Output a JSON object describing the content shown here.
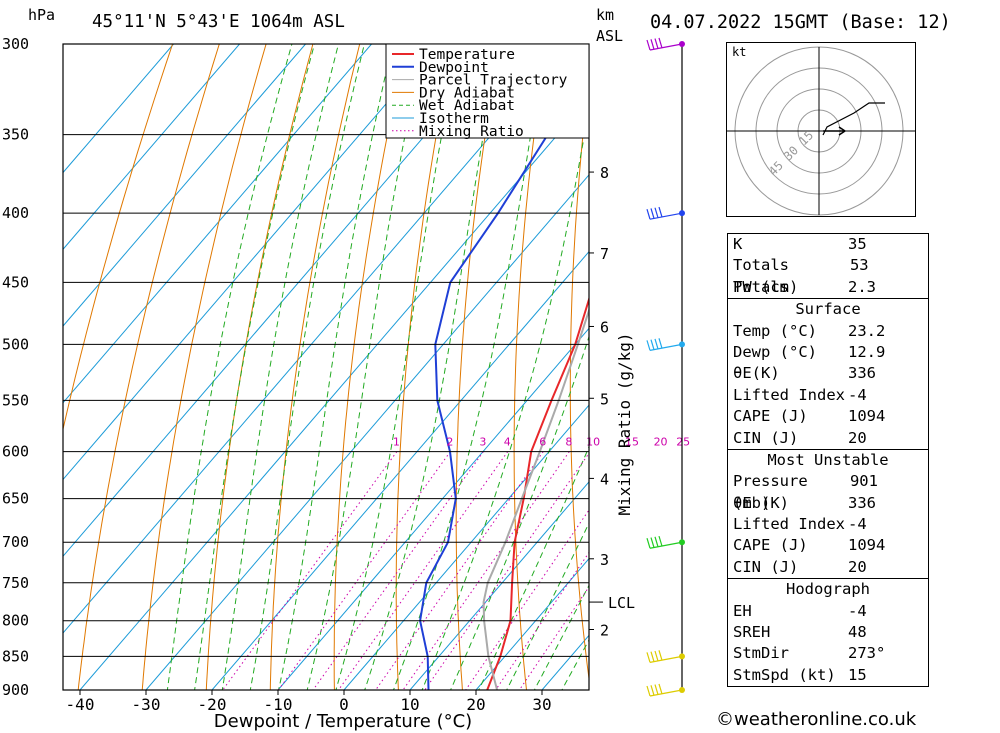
{
  "header": {
    "pressure_unit": "hPa",
    "location": "45°11'N  5°43'E  1064m  ASL",
    "height_unit_line1": "km",
    "height_unit_line2": "ASL",
    "datetime": "04.07.2022  15GMT  (Base: 12)"
  },
  "chart_data": {
    "type": "line",
    "title": "45°11'N  5°43'E  1064m  ASL",
    "xlabel": "Dewpoint / Temperature (°C)",
    "ylabel": "hPa",
    "y_scale": "log",
    "xlim": [
      -40,
      36
    ],
    "ylim": [
      900,
      300
    ],
    "pressure_levels": [
      300,
      350,
      400,
      450,
      500,
      550,
      600,
      650,
      700,
      750,
      800,
      850,
      900
    ],
    "temperature_ticks": [
      -40,
      -30,
      -20,
      -10,
      0,
      10,
      20,
      30
    ],
    "height_ticks_km": [
      {
        "label": "8",
        "p": 373
      },
      {
        "label": "7",
        "p": 428
      },
      {
        "label": "6",
        "p": 485
      },
      {
        "label": "5",
        "p": 548
      },
      {
        "label": "4",
        "p": 628
      },
      {
        "label": "3",
        "p": 720
      },
      {
        "label": "2",
        "p": 812
      }
    ],
    "lcl": {
      "label": "LCL",
      "p": 775
    },
    "mixing_ratio_label": "Mixing Ratio (g/kg)",
    "mixing_ratio_values": [
      "1",
      "2",
      "3",
      "4",
      "6",
      "8",
      "10",
      "15",
      "20",
      "25"
    ],
    "legend": {
      "position": "top-right",
      "entries": [
        {
          "name": "Temperature",
          "color": "#e8272a",
          "style": "solid"
        },
        {
          "name": "Dewpoint",
          "color": "#1f3fd6",
          "style": "solid"
        },
        {
          "name": "Parcel Trajectory",
          "color": "#aaaaaa",
          "style": "solid"
        },
        {
          "name": "Dry Adiabat",
          "color": "#e07800",
          "style": "solid"
        },
        {
          "name": "Wet Adiabat",
          "color": "#22aa22",
          "style": "dashed"
        },
        {
          "name": "Isotherm",
          "color": "#1c9bd8",
          "style": "solid"
        },
        {
          "name": "Mixing Ratio",
          "color": "#cc00aa",
          "style": "dotted"
        }
      ]
    },
    "series": [
      {
        "name": "Temperature",
        "color": "#e8272a",
        "points": [
          {
            "p": 900,
            "t": 21.7
          },
          {
            "p": 850,
            "t": 19.3
          },
          {
            "p": 800,
            "t": 16.2
          },
          {
            "p": 750,
            "t": 11.5
          },
          {
            "p": 700,
            "t": 6.6
          },
          {
            "p": 650,
            "t": 2.3
          },
          {
            "p": 600,
            "t": -2.7
          },
          {
            "p": 550,
            "t": -6.3
          },
          {
            "p": 500,
            "t": -10.0
          },
          {
            "p": 450,
            "t": -15.2
          },
          {
            "p": 400,
            "t": -21.5
          },
          {
            "p": 350,
            "t": -29.8
          },
          {
            "p": 300,
            "t": -40.2
          }
        ]
      },
      {
        "name": "Dewpoint",
        "color": "#1f3fd6",
        "points": [
          {
            "p": 900,
            "t": 12.8
          },
          {
            "p": 850,
            "t": 8.3
          },
          {
            "p": 800,
            "t": 2.5
          },
          {
            "p": 750,
            "t": -1.5
          },
          {
            "p": 700,
            "t": -3.5
          },
          {
            "p": 650,
            "t": -8.0
          },
          {
            "p": 600,
            "t": -15.0
          },
          {
            "p": 550,
            "t": -23.6
          },
          {
            "p": 500,
            "t": -31.2
          },
          {
            "p": 450,
            "t": -37.0
          },
          {
            "p": 400,
            "t": -38.8
          },
          {
            "p": 350,
            "t": -41.5
          },
          {
            "p": 300,
            "t": -51.2
          }
        ]
      },
      {
        "name": "Parcel Trajectory",
        "color": "#aaaaaa",
        "points": [
          {
            "p": 900,
            "t": 23.2
          },
          {
            "p": 850,
            "t": 17.5
          },
          {
            "p": 800,
            "t": 12.2
          },
          {
            "p": 775,
            "t": 9.7
          },
          {
            "p": 750,
            "t": 7.8
          },
          {
            "p": 700,
            "t": 5.2
          },
          {
            "p": 650,
            "t": 2.0
          },
          {
            "p": 600,
            "t": -1.4
          },
          {
            "p": 550,
            "t": -5.2
          },
          {
            "p": 500,
            "t": -9.6
          },
          {
            "p": 450,
            "t": -14.6
          },
          {
            "p": 400,
            "t": -20.0
          },
          {
            "p": 350,
            "t": -27.8
          },
          {
            "p": 300,
            "t": -36.7
          }
        ]
      }
    ],
    "wind_barbs": [
      {
        "p": 300,
        "color": "#aa00cc"
      },
      {
        "p": 400,
        "color": "#2244ee"
      },
      {
        "p": 500,
        "color": "#22aaee"
      },
      {
        "p": 700,
        "color": "#22cc22"
      },
      {
        "p": 850,
        "color": "#ddcc00"
      },
      {
        "p": 900,
        "color": "#ddcc00"
      }
    ]
  },
  "hodograph": {
    "unit": "kt",
    "ring_labels": [
      "15",
      "30",
      "45"
    ]
  },
  "indices": {
    "k_label": "K",
    "k_value": "35",
    "tt_label": "Totals Totals",
    "tt_value": "53",
    "pw_label": "PW (cm)",
    "pw_value": "2.3",
    "surface_title": "Surface",
    "temp_label": "Temp (°C)",
    "temp_value": "23.2",
    "dewp_label": "Dewp (°C)",
    "dewp_value": "12.9",
    "thetae_label": "θE(K)",
    "thetae_value": "336",
    "li_label": "Lifted Index",
    "li_value": "-4",
    "cape_label": "CAPE (J)",
    "cape_value": "1094",
    "cin_label": "CIN (J)",
    "cin_value": "20",
    "mu_title": "Most Unstable",
    "mu_pressure_label": "Pressure (mb)",
    "mu_pressure_value": "901",
    "mu_thetae_label": "θE (K)",
    "mu_thetae_value": "336",
    "mu_li_label": "Lifted Index",
    "mu_li_value": "-4",
    "mu_cape_label": "CAPE (J)",
    "mu_cape_value": "1094",
    "mu_cin_label": "CIN (J)",
    "mu_cin_value": "20",
    "hodo_title": "Hodograph",
    "eh_label": "EH",
    "eh_value": "-4",
    "sreh_label": "SREH",
    "sreh_value": "48",
    "stmdir_label": "StmDir",
    "stmdir_value": "273°",
    "stmspd_label": "StmSpd (kt)",
    "stmspd_value": "15"
  },
  "credit": "©weatheronline.co.uk"
}
